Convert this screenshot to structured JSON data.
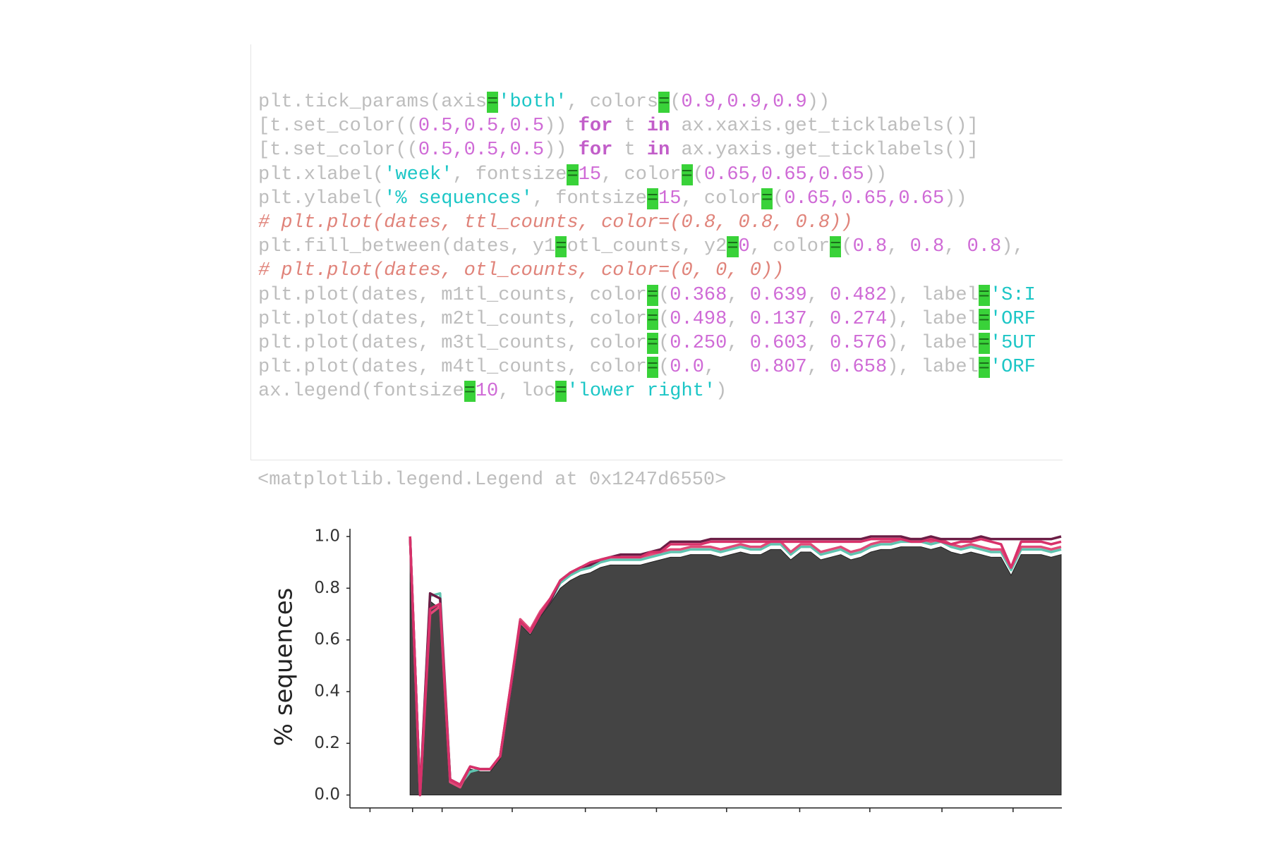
{
  "notebook": {
    "code": {
      "lines": [
        [
          {
            "text": "plt.tick_params(axis",
            "color": "#bdbdbd"
          },
          {
            "text": "=",
            "color": "#1b6e1b",
            "background": "#39d239"
          },
          {
            "text": "'both'",
            "color": "#1cc6c6"
          },
          {
            "text": ", colors",
            "color": "#bdbdbd"
          },
          {
            "text": "=",
            "color": "#1b6e1b",
            "background": "#39d239"
          },
          {
            "text": "(",
            "color": "#bdbdbd"
          },
          {
            "text": "0.9,0.9,0.9",
            "color": "#cf6ad6"
          },
          {
            "text": "))",
            "color": "#bdbdbd"
          }
        ],
        [
          {
            "text": "[t.set_color((",
            "color": "#bdbdbd"
          },
          {
            "text": "0.5,0.5,0.5",
            "color": "#cf6ad6"
          },
          {
            "text": ")) ",
            "color": "#bdbdbd"
          },
          {
            "text": "for",
            "color": "#c25ec9",
            "bold": true
          },
          {
            "text": " t ",
            "color": "#bdbdbd"
          },
          {
            "text": "in",
            "color": "#c25ec9",
            "bold": true
          },
          {
            "text": " ax.xaxis.get_ticklabels()]",
            "color": "#bdbdbd"
          }
        ],
        [
          {
            "text": "[t.set_color((",
            "color": "#bdbdbd"
          },
          {
            "text": "0.5,0.5,0.5",
            "color": "#cf6ad6"
          },
          {
            "text": ")) ",
            "color": "#bdbdbd"
          },
          {
            "text": "for",
            "color": "#c25ec9",
            "bold": true
          },
          {
            "text": " t ",
            "color": "#bdbdbd"
          },
          {
            "text": "in",
            "color": "#c25ec9",
            "bold": true
          },
          {
            "text": " ax.yaxis.get_ticklabels()]",
            "color": "#bdbdbd"
          }
        ],
        [
          {
            "text": "plt.xlabel(",
            "color": "#bdbdbd"
          },
          {
            "text": "'week'",
            "color": "#1cc6c6"
          },
          {
            "text": ", fontsize",
            "color": "#bdbdbd"
          },
          {
            "text": "=",
            "color": "#1b6e1b",
            "background": "#39d239"
          },
          {
            "text": "15",
            "color": "#cf6ad6"
          },
          {
            "text": ", color",
            "color": "#bdbdbd"
          },
          {
            "text": "=",
            "color": "#1b6e1b",
            "background": "#39d239"
          },
          {
            "text": "(",
            "color": "#bdbdbd"
          },
          {
            "text": "0.65,0.65,0.65",
            "color": "#cf6ad6"
          },
          {
            "text": "))",
            "color": "#bdbdbd"
          }
        ],
        [
          {
            "text": "plt.ylabel(",
            "color": "#bdbdbd"
          },
          {
            "text": "'% sequences'",
            "color": "#1cc6c6"
          },
          {
            "text": ", fontsize",
            "color": "#bdbdbd"
          },
          {
            "text": "=",
            "color": "#1b6e1b",
            "background": "#39d239"
          },
          {
            "text": "15",
            "color": "#cf6ad6"
          },
          {
            "text": ", color",
            "color": "#bdbdbd"
          },
          {
            "text": "=",
            "color": "#1b6e1b",
            "background": "#39d239"
          },
          {
            "text": "(",
            "color": "#bdbdbd"
          },
          {
            "text": "0.65,0.65,0.65",
            "color": "#cf6ad6"
          },
          {
            "text": "))",
            "color": "#bdbdbd"
          }
        ],
        [
          {
            "text": "# plt.plot(dates, ttl_counts, color=(0.8, 0.8, 0.8))",
            "color": "#e0837a",
            "italic": true
          }
        ],
        [
          {
            "text": "plt.fill_between(dates, y1",
            "color": "#bdbdbd"
          },
          {
            "text": "=",
            "color": "#1b6e1b",
            "background": "#39d239"
          },
          {
            "text": "otl_counts, y2",
            "color": "#bdbdbd"
          },
          {
            "text": "=",
            "color": "#1b6e1b",
            "background": "#39d239"
          },
          {
            "text": "0",
            "color": "#cf6ad6"
          },
          {
            "text": ", color",
            "color": "#bdbdbd"
          },
          {
            "text": "=",
            "color": "#1b6e1b",
            "background": "#39d239"
          },
          {
            "text": "(",
            "color": "#bdbdbd"
          },
          {
            "text": "0.8",
            "color": "#cf6ad6"
          },
          {
            "text": ", ",
            "color": "#bdbdbd"
          },
          {
            "text": "0.8",
            "color": "#cf6ad6"
          },
          {
            "text": ", ",
            "color": "#bdbdbd"
          },
          {
            "text": "0.8",
            "color": "#cf6ad6"
          },
          {
            "text": "),",
            "color": "#bdbdbd"
          }
        ],
        [
          {
            "text": "# plt.plot(dates, otl_counts, color=(0, 0, 0))",
            "color": "#e0837a",
            "italic": true
          }
        ],
        [
          {
            "text": "plt.plot(dates, m1tl_counts, color",
            "color": "#bdbdbd"
          },
          {
            "text": "=",
            "color": "#1b6e1b",
            "background": "#39d239"
          },
          {
            "text": "(",
            "color": "#bdbdbd"
          },
          {
            "text": "0.368",
            "color": "#cf6ad6"
          },
          {
            "text": ", ",
            "color": "#bdbdbd"
          },
          {
            "text": "0.639",
            "color": "#cf6ad6"
          },
          {
            "text": ", ",
            "color": "#bdbdbd"
          },
          {
            "text": "0.482",
            "color": "#cf6ad6"
          },
          {
            "text": "), label",
            "color": "#bdbdbd"
          },
          {
            "text": "=",
            "color": "#1b6e1b",
            "background": "#39d239"
          },
          {
            "text": "'S:I",
            "color": "#1cc6c6"
          }
        ],
        [
          {
            "text": "plt.plot(dates, m2tl_counts, color",
            "color": "#bdbdbd"
          },
          {
            "text": "=",
            "color": "#1b6e1b",
            "background": "#39d239"
          },
          {
            "text": "(",
            "color": "#bdbdbd"
          },
          {
            "text": "0.498",
            "color": "#cf6ad6"
          },
          {
            "text": ", ",
            "color": "#bdbdbd"
          },
          {
            "text": "0.137",
            "color": "#cf6ad6"
          },
          {
            "text": ", ",
            "color": "#bdbdbd"
          },
          {
            "text": "0.274",
            "color": "#cf6ad6"
          },
          {
            "text": "), label",
            "color": "#bdbdbd"
          },
          {
            "text": "=",
            "color": "#1b6e1b",
            "background": "#39d239"
          },
          {
            "text": "'ORF",
            "color": "#1cc6c6"
          }
        ],
        [
          {
            "text": "plt.plot(dates, m3tl_counts, color",
            "color": "#bdbdbd"
          },
          {
            "text": "=",
            "color": "#1b6e1b",
            "background": "#39d239"
          },
          {
            "text": "(",
            "color": "#bdbdbd"
          },
          {
            "text": "0.250",
            "color": "#cf6ad6"
          },
          {
            "text": ", ",
            "color": "#bdbdbd"
          },
          {
            "text": "0.603",
            "color": "#cf6ad6"
          },
          {
            "text": ", ",
            "color": "#bdbdbd"
          },
          {
            "text": "0.576",
            "color": "#cf6ad6"
          },
          {
            "text": "), label",
            "color": "#bdbdbd"
          },
          {
            "text": "=",
            "color": "#1b6e1b",
            "background": "#39d239"
          },
          {
            "text": "'5UT",
            "color": "#1cc6c6"
          }
        ],
        [
          {
            "text": "plt.plot(dates, m4tl_counts, color",
            "color": "#bdbdbd"
          },
          {
            "text": "=",
            "color": "#1b6e1b",
            "background": "#39d239"
          },
          {
            "text": "(",
            "color": "#bdbdbd"
          },
          {
            "text": "0.0",
            "color": "#cf6ad6"
          },
          {
            "text": ",   ",
            "color": "#bdbdbd"
          },
          {
            "text": "0.807",
            "color": "#cf6ad6"
          },
          {
            "text": ", ",
            "color": "#bdbdbd"
          },
          {
            "text": "0.658",
            "color": "#cf6ad6"
          },
          {
            "text": "), label",
            "color": "#bdbdbd"
          },
          {
            "text": "=",
            "color": "#1b6e1b",
            "background": "#39d239"
          },
          {
            "text": "'ORF",
            "color": "#1cc6c6"
          }
        ],
        [
          {
            "text": "ax.legend(fontsize",
            "color": "#bdbdbd"
          },
          {
            "text": "=",
            "color": "#1b6e1b",
            "background": "#39d239"
          },
          {
            "text": "10",
            "color": "#cf6ad6"
          },
          {
            "text": ", loc",
            "color": "#bdbdbd"
          },
          {
            "text": "=",
            "color": "#1b6e1b",
            "background": "#39d239"
          },
          {
            "text": "'lower right'",
            "color": "#1cc6c6"
          },
          {
            "text": ")",
            "color": "#bdbdbd"
          }
        ]
      ]
    },
    "output": "<matplotlib.legend.Legend at 0x1247d6550>"
  },
  "chart_data": {
    "type": "line",
    "ylabel": "% sequences",
    "x": [
      0,
      1,
      2,
      3,
      4,
      5,
      6,
      7,
      8,
      9,
      10,
      11,
      12,
      13,
      14,
      15,
      16,
      17,
      18,
      19,
      20,
      21,
      22,
      23,
      24,
      25,
      26,
      27,
      28,
      29,
      30,
      31,
      32,
      33,
      34,
      35,
      36,
      37,
      38,
      39,
      40,
      41,
      42,
      43,
      44,
      45,
      46,
      47,
      48,
      49,
      50,
      51,
      52,
      53,
      54,
      55,
      56,
      57,
      58,
      59,
      60,
      61,
      62,
      63,
      64,
      65
    ],
    "xlim": [
      -6,
      65
    ],
    "xticks": [
      -4,
      0.25,
      3.2,
      10.2,
      17.5,
      24.6,
      31.6,
      38.9,
      45.9,
      53.1,
      60.2
    ],
    "ylim": [
      -0.05,
      1.03
    ],
    "yticks": [
      {
        "value": 0,
        "label": "0.0"
      },
      0.2,
      0.4,
      0.6,
      0.8,
      {
        "value": 1,
        "label": "1.0"
      }
    ],
    "series": [
      {
        "type": "area",
        "color": "#444444",
        "values": [
          1.0,
          0.0,
          0.75,
          0.72,
          0.05,
          0.03,
          0.1,
          0.09,
          0.09,
          0.14,
          0.38,
          0.66,
          0.62,
          0.69,
          0.74,
          0.8,
          0.83,
          0.85,
          0.86,
          0.88,
          0.89,
          0.89,
          0.89,
          0.89,
          0.9,
          0.91,
          0.92,
          0.92,
          0.93,
          0.93,
          0.93,
          0.92,
          0.93,
          0.94,
          0.93,
          0.93,
          0.95,
          0.95,
          0.91,
          0.94,
          0.94,
          0.91,
          0.92,
          0.93,
          0.91,
          0.92,
          0.94,
          0.95,
          0.95,
          0.96,
          0.96,
          0.96,
          0.95,
          0.96,
          0.94,
          0.93,
          0.94,
          0.93,
          0.92,
          0.92,
          0.85,
          0.93,
          0.93,
          0.93,
          0.92,
          0.93
        ]
      },
      {
        "type": "line",
        "color": "#5fc4b0",
        "values": [
          1.0,
          0.0,
          0.77,
          0.78,
          0.06,
          0.04,
          0.09,
          0.1,
          0.1,
          0.15,
          0.4,
          0.67,
          0.63,
          0.7,
          0.75,
          0.82,
          0.85,
          0.87,
          0.88,
          0.9,
          0.91,
          0.91,
          0.91,
          0.91,
          0.92,
          0.93,
          0.94,
          0.94,
          0.95,
          0.95,
          0.95,
          0.94,
          0.95,
          0.96,
          0.95,
          0.95,
          0.97,
          0.97,
          0.93,
          0.96,
          0.96,
          0.93,
          0.94,
          0.95,
          0.93,
          0.94,
          0.96,
          0.97,
          0.97,
          0.98,
          0.98,
          0.98,
          0.97,
          0.98,
          0.96,
          0.95,
          0.96,
          0.95,
          0.94,
          0.94,
          0.87,
          0.95,
          0.95,
          0.95,
          0.94,
          0.95
        ]
      },
      {
        "type": "line",
        "color": "#e04a78",
        "values": [
          1.0,
          0.0,
          0.7,
          0.73,
          0.05,
          0.03,
          0.11,
          0.1,
          0.1,
          0.15,
          0.41,
          0.68,
          0.64,
          0.71,
          0.76,
          0.83,
          0.86,
          0.88,
          0.89,
          0.91,
          0.92,
          0.92,
          0.92,
          0.92,
          0.93,
          0.94,
          0.95,
          0.95,
          0.96,
          0.96,
          0.96,
          0.95,
          0.96,
          0.97,
          0.96,
          0.96,
          0.98,
          0.98,
          0.94,
          0.97,
          0.97,
          0.94,
          0.95,
          0.96,
          0.94,
          0.95,
          0.97,
          0.98,
          0.98,
          0.99,
          0.99,
          0.99,
          0.98,
          0.99,
          0.97,
          0.96,
          0.97,
          0.96,
          0.95,
          0.95,
          0.88,
          0.96,
          0.96,
          0.96,
          0.95,
          0.96
        ]
      },
      {
        "type": "line",
        "color": "#6b1d45",
        "values": [
          1.0,
          0.0,
          0.78,
          0.76,
          0.06,
          0.04,
          0.11,
          0.1,
          0.1,
          0.15,
          0.4,
          0.67,
          0.63,
          0.7,
          0.75,
          0.83,
          0.86,
          0.88,
          0.89,
          0.91,
          0.92,
          0.93,
          0.93,
          0.93,
          0.94,
          0.95,
          0.98,
          0.98,
          0.98,
          0.98,
          0.99,
          0.99,
          0.99,
          0.99,
          0.99,
          0.99,
          0.99,
          0.99,
          0.99,
          0.99,
          0.99,
          0.99,
          0.99,
          0.99,
          0.99,
          0.99,
          1.0,
          1.0,
          1.0,
          1.0,
          0.99,
          0.99,
          1.0,
          0.99,
          0.99,
          0.99,
          0.99,
          1.0,
          0.99,
          0.99,
          0.99,
          0.99,
          0.99,
          0.99,
          0.99,
          1.0
        ]
      },
      {
        "type": "line",
        "color": "#d8316a",
        "values": [
          1.0,
          0.0,
          0.72,
          0.74,
          0.06,
          0.04,
          0.11,
          0.1,
          0.1,
          0.15,
          0.41,
          0.67,
          0.63,
          0.7,
          0.76,
          0.83,
          0.86,
          0.88,
          0.9,
          0.91,
          0.92,
          0.92,
          0.92,
          0.92,
          0.94,
          0.94,
          0.97,
          0.97,
          0.97,
          0.97,
          0.98,
          0.98,
          0.98,
          0.98,
          0.98,
          0.98,
          0.98,
          0.98,
          0.98,
          0.98,
          0.98,
          0.98,
          0.98,
          0.98,
          0.98,
          0.98,
          0.99,
          0.99,
          0.99,
          0.99,
          0.98,
          0.98,
          0.99,
          0.98,
          0.97,
          0.98,
          0.98,
          0.99,
          0.98,
          0.97,
          0.88,
          0.98,
          0.98,
          0.98,
          0.97,
          0.98
        ]
      }
    ]
  }
}
